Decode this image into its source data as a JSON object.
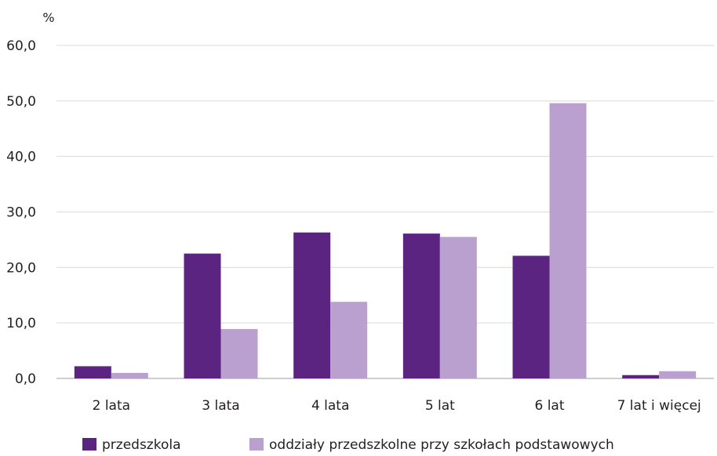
{
  "chart_data": {
    "type": "bar",
    "y_unit": "%",
    "categories": [
      "2 lata",
      "3 lata",
      "4 lata",
      "5 lat",
      "6 lat",
      "7 lat i więcej"
    ],
    "series": [
      {
        "name": "przedszkola",
        "color": "#5b2480",
        "values": [
          2.2,
          22.5,
          26.3,
          26.1,
          22.1,
          0.6
        ]
      },
      {
        "name": "oddziały przedszkolne przy szkołach podstawowych",
        "color": "#b9a0cf",
        "values": [
          1.0,
          8.9,
          13.8,
          25.5,
          49.6,
          1.3
        ]
      }
    ],
    "ylim": [
      0,
      60
    ],
    "yticks": [
      "0,0",
      "10,0",
      "20,0",
      "30,0",
      "40,0",
      "50,0",
      "60,0"
    ],
    "grid": true,
    "legend_position": "bottom-left"
  }
}
